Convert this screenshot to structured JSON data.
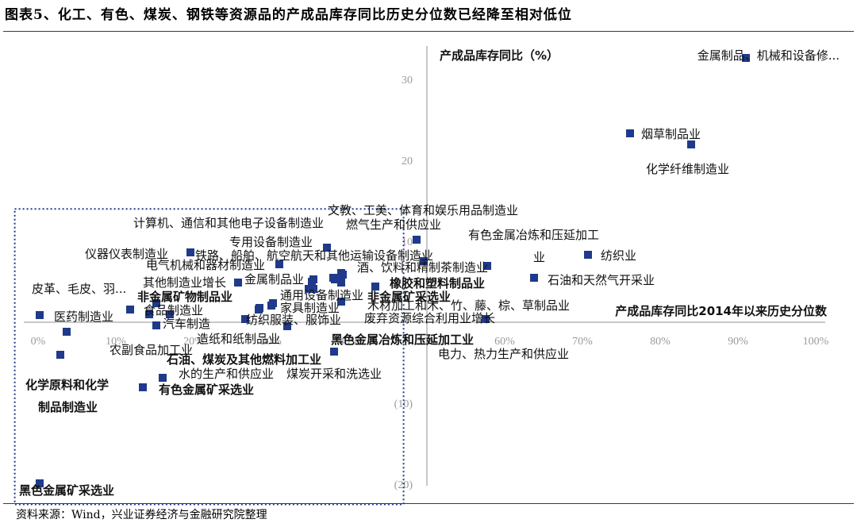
{
  "figure": {
    "title": "图表5、化工、有色、煤炭、钢铁等资源品的产成品库存同比历史分位数已经降至相对低位",
    "source": "资料来源：Wind，兴业证券经济与金融研究院整理"
  },
  "chart_data": {
    "type": "scatter",
    "xlabel": "产成品库存同比2014年以来历史分位数",
    "ylabel": "产成品库存同比（%）",
    "xlim": [
      0,
      1
    ],
    "ylim": [
      -20,
      33
    ],
    "x_tick_labels": [
      "0%",
      "10%",
      "20%",
      "30%",
      "40%",
      "50%",
      "60%",
      "70%",
      "80%",
      "90%",
      "100%"
    ],
    "y_tick_labels": [
      "30",
      "20",
      "10",
      "(10)",
      "(20)"
    ],
    "marker_color": "#1f3a8a",
    "highlight_box": {
      "x_range": [
        -0.03,
        0.47
      ],
      "y_range": [
        -22.5,
        14
      ]
    },
    "points": [
      {
        "name": "金属制品、机械和设备修...",
        "x": 0.92,
        "y": 33.0
      },
      {
        "name": "烟草制品业",
        "x": 0.76,
        "y": 23.8
      },
      {
        "name": "化学纤维制造业",
        "x": 0.84,
        "y": 22.3
      },
      {
        "name": "文教、工美、体育和娱乐用品制造业",
        "x": 0.49,
        "y": 10.0
      },
      {
        "name": "燃气生产和供应业",
        "x": 0.49,
        "y": 10.4
      },
      {
        "name": "有色金属冶炼和压延加工",
        "x": 0.58,
        "y": 7.2
      },
      {
        "name": "纺织业",
        "x": 0.72,
        "y": 8.3
      },
      {
        "name": "业",
        "x": 0.58,
        "y": 7.3
      },
      {
        "name": "石油和天然气开采业",
        "x": 0.64,
        "y": 5.6
      },
      {
        "name": "计算机、通信和其他电子设备制造业",
        "x": 0.38,
        "y": 7.0
      },
      {
        "name": "专用设备制造业",
        "x": 0.37,
        "y": 9.4
      },
      {
        "name": "仪器仪表制造业",
        "x": 0.19,
        "y": 8.8
      },
      {
        "name": "铁路、船舶、航空航天和其他运输设备制造业",
        "x": 0.5,
        "y": 7.8
      },
      {
        "name": "电气机械和器材制造业",
        "x": 0.31,
        "y": 7.3
      },
      {
        "name": "酒、饮料和精制茶制造业",
        "x": 0.39,
        "y": 6.0
      },
      {
        "name": "其他制造业增长",
        "x": 0.26,
        "y": 5.0
      },
      {
        "name": "金属制品业",
        "x": 0.35,
        "y": 5.3
      },
      {
        "name": "橡胶和塑料制品业",
        "x": 0.43,
        "y": 4.6
      },
      {
        "name": "皮革、毛皮、羽...",
        "x": 0.27,
        "y": 5.5
      },
      {
        "name": "非金属矿物制品业",
        "x": 0.15,
        "y": 2.6
      },
      {
        "name": "通用设备制造业",
        "x": 0.34,
        "y": 4.2
      },
      {
        "name": "非金属矿采选业",
        "x": 0.39,
        "y": 2.6
      },
      {
        "name": "医药制造业",
        "x": 0.0,
        "y": 1.0
      },
      {
        "name": "食品制造业",
        "x": 0.12,
        "y": 1.6
      },
      {
        "name": "家具制造业",
        "x": 0.3,
        "y": 2.4
      },
      {
        "name": "木材加工和木、竹、藤、棕、草制品业",
        "x": 0.58,
        "y": 0.6
      },
      {
        "name": "汽车制造",
        "x": 0.14,
        "y": 1.0
      },
      {
        "name": "纺织服装、服饰业",
        "x": 0.26,
        "y": 0.3
      },
      {
        "name": "废弃资源综合利用业增长",
        "x": 0.32,
        "y": -0.6
      },
      {
        "name": "造纸和纸制品业",
        "x": 0.03,
        "y": -1.0
      },
      {
        "name": "农副食品加工业",
        "x": 0.15,
        "y": 1.0
      },
      {
        "name": "黑色金属冶炼和压延加工业",
        "x": 0.38,
        "y": -3.8
      },
      {
        "name": "电力、热力生产和供应业",
        "x": 0.38,
        "y": -3.8
      },
      {
        "name": "石油、煤炭及其他燃料加工业",
        "x": 0.02,
        "y": -4.0
      },
      {
        "name": "水的生产和供应业",
        "x": 0.16,
        "y": -6.8
      },
      {
        "name": "煤炭开采和洗选业",
        "x": 0.16,
        "y": -6.8
      },
      {
        "name": "化学原料和化学",
        "x": 0.13,
        "y": -8.0
      },
      {
        "name": "制品制造业",
        "x": 0.13,
        "y": -8.0
      },
      {
        "name": "有色金属矿采选业",
        "x": 0.13,
        "y": -8.0
      },
      {
        "name": "黑色金属矿采选业",
        "x": 0.0,
        "y": -20.0
      }
    ],
    "extra_markers": [
      {
        "x": 0.46,
        "y": 8.0
      },
      {
        "x": 0.35,
        "y": 5.4
      },
      {
        "x": 0.36,
        "y": 4.8
      },
      {
        "x": 0.33,
        "y": 5.8
      },
      {
        "x": 0.39,
        "y": 6.3
      },
      {
        "x": 0.37,
        "y": 4.3
      },
      {
        "x": 0.39,
        "y": 5.4
      },
      {
        "x": 0.3,
        "y": 2.6
      },
      {
        "x": 0.25,
        "y": 1.4
      },
      {
        "x": 0.28,
        "y": 2.1
      },
      {
        "x": 0.14,
        "y": 2.5
      },
      {
        "x": 0.17,
        "y": 1.5
      },
      {
        "x": 0.33,
        "y": 0.8
      },
      {
        "x": 0.03,
        "y": -1.2
      }
    ]
  }
}
